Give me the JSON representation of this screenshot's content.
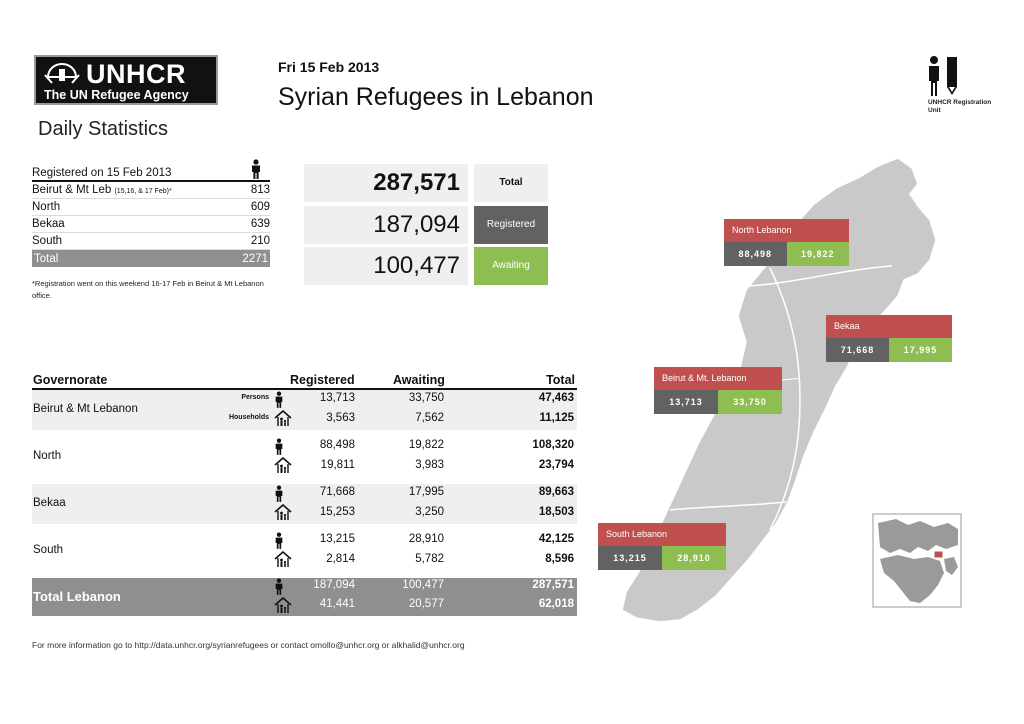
{
  "header": {
    "logo_main": "UNHCR",
    "logo_sub": "The UN Refugee Agency",
    "daily": "Daily Statistics",
    "date": "Fri 15 Feb 2013",
    "title": "Syrian Refugees in Lebanon",
    "reg_unit": "UNHCR Registration Unit"
  },
  "registered_today": {
    "heading": "Registered on 15 Feb 2013",
    "rows": [
      {
        "label": "Beirut & Mt Leb",
        "note": "(15,16, & 17 Feb)*",
        "value": "813"
      },
      {
        "label": "North",
        "value": "609"
      },
      {
        "label": "Bekaa",
        "value": "639"
      },
      {
        "label": "South",
        "value": "210"
      }
    ],
    "total_label": "Total",
    "total_value": "2271",
    "footnote": "*Registration went on this weekend 16-17 Feb in Beirut & Mt Lebanon office."
  },
  "summary": {
    "total_value": "287,571",
    "total_label": "Total",
    "registered_value": "187,094",
    "registered_label": "Registered",
    "awaiting_value": "100,477",
    "awaiting_label": "Awaiting"
  },
  "gov_table": {
    "headers": {
      "gov": "Governorate",
      "reg": "Registered",
      "awa": "Awaiting",
      "tot": "Total"
    },
    "persons_label": "Persons",
    "households_label": "Households",
    "rows": [
      {
        "name": "Beirut & Mt Lebanon",
        "p_reg": "13,713",
        "p_awa": "33,750",
        "p_tot": "47,463",
        "h_reg": "3,563",
        "h_awa": "7,562",
        "h_tot": "11,125"
      },
      {
        "name": "North",
        "p_reg": "88,498",
        "p_awa": "19,822",
        "p_tot": "108,320",
        "h_reg": "19,811",
        "h_awa": "3,983",
        "h_tot": "23,794"
      },
      {
        "name": "Bekaa",
        "p_reg": "71,668",
        "p_awa": "17,995",
        "p_tot": "89,663",
        "h_reg": "15,253",
        "h_awa": "3,250",
        "h_tot": "18,503"
      },
      {
        "name": "South",
        "p_reg": "13,215",
        "p_awa": "28,910",
        "p_tot": "42,125",
        "h_reg": "2,814",
        "h_awa": "5,782",
        "h_tot": "8,596"
      }
    ],
    "total": {
      "name": "Total Lebanon",
      "p_reg": "187,094",
      "p_awa": "100,477",
      "p_tot": "287,571",
      "h_reg": "41,441",
      "h_awa": "20,577",
      "h_tot": "62,018"
    }
  },
  "map": {
    "north": {
      "title": "North Lebanon",
      "reg": "88,498",
      "awa": "19,822"
    },
    "bekaa": {
      "title": "Bekaa",
      "reg": "71,668",
      "awa": "17,995"
    },
    "beirut": {
      "title": "Beirut & Mt. Lebanon",
      "reg": "13,713",
      "awa": "33,750"
    },
    "south": {
      "title": "South Lebanon",
      "reg": "13,215",
      "awa": "28,910"
    }
  },
  "footer": {
    "text": "For more information go to   http://data.unhcr.org/syrianrefugees   or contact  omollo@unhcr.org  or alkhalid@unhcr.org"
  },
  "colors": {
    "registered": "#626262",
    "awaiting": "#8ebd52",
    "callout": "#c0504d",
    "total_bar": "#8f8f8f"
  }
}
